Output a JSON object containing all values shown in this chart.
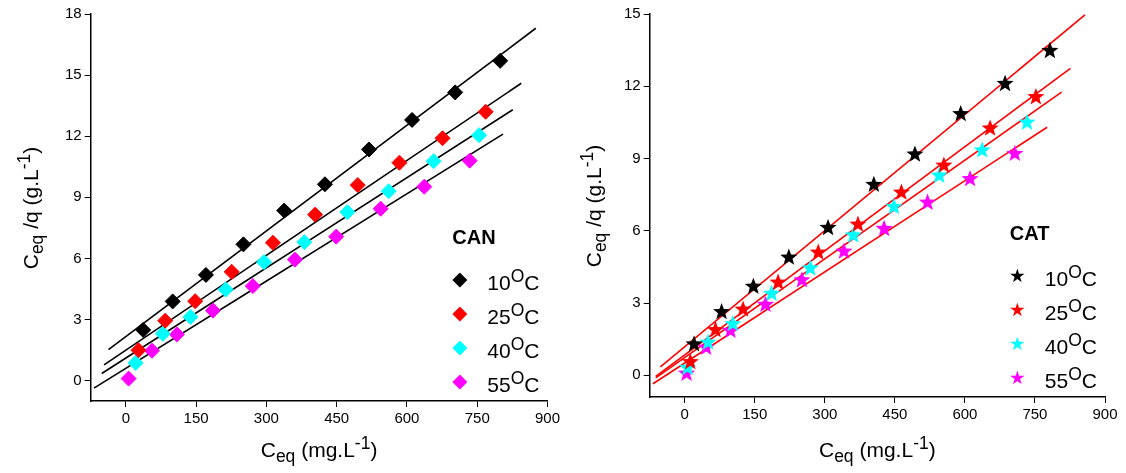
{
  "chart_data": [
    {
      "type": "scatter",
      "xlabel": "C$_{eq}$ (mg.L$^{-1}$)",
      "ylabel": "C$_{eq}$ /q (g.L$^{-1}$)",
      "legend_title": "CAN",
      "legend": "bottom right",
      "marker": "diamond",
      "xlim": [
        -75,
        900
      ],
      "xticks": [
        0,
        150,
        300,
        450,
        600,
        750,
        900
      ],
      "ylim": [
        -1,
        18
      ],
      "yticks": [
        0,
        3,
        6,
        9,
        12,
        15,
        18
      ],
      "series": [
        {
          "name": "10$^{O}$C",
          "color": "#000000",
          "x": [
            37,
            100,
            171,
            251,
            338,
            425,
            519,
            611,
            703,
            799
          ],
          "values": [
            2.49,
            3.89,
            5.19,
            6.69,
            8.35,
            9.64,
            11.35,
            12.8,
            14.15,
            15.7
          ]
        },
        {
          "name": "25$^{O}$C",
          "color": "#ff0000",
          "x": [
            27,
            84,
            148,
            226,
            314,
            404,
            495,
            584,
            676,
            768
          ],
          "values": [
            1.49,
            2.94,
            3.9,
            5.34,
            6.77,
            8.15,
            9.6,
            10.7,
            11.9,
            13.2
          ]
        },
        {
          "name": "40$^{O}$C",
          "color": "#00ffff",
          "x": [
            21,
            79,
            138,
            213,
            295,
            381,
            473,
            561,
            657,
            754
          ],
          "values": [
            0.87,
            2.3,
            3.13,
            4.47,
            5.82,
            6.8,
            8.27,
            9.3,
            10.77,
            12.05
          ]
        },
        {
          "name": "55$^{O}$C",
          "color": "#ff00ff",
          "x": [
            6,
            56,
            109,
            186,
            271,
            361,
            449,
            544,
            637,
            734
          ],
          "values": [
            0.1,
            1.47,
            2.27,
            3.44,
            4.64,
            5.94,
            7.07,
            8.44,
            9.52,
            10.8
          ]
        },
        {
          "type": "line",
          "marker": "none",
          "color": "#000000",
          "x": [
            -37,
            875
          ],
          "values": [
            1.52,
            17.3
          ]
        },
        {
          "type": "line",
          "marker": "none",
          "color": "#000000",
          "x": [
            -46.5,
            844
          ],
          "values": [
            0.77,
            14.6
          ]
        },
        {
          "type": "line",
          "marker": "none",
          "color": "#000000",
          "x": [
            -51.4,
            826
          ],
          "values": [
            0.35,
            13.3
          ]
        },
        {
          "type": "line",
          "marker": "none",
          "color": "#000000",
          "x": [
            -68,
            805
          ],
          "values": [
            -0.37,
            12.1
          ]
        }
      ]
    },
    {
      "type": "scatter",
      "xlabel": "C$_{eq}$ (mg.L$^{-1}$)",
      "ylabel": "C$_{eq}$ /q (g.L$^{-1}$)",
      "legend_title": "CAT",
      "legend": "bottom right",
      "marker": "star",
      "xlim": [
        -75,
        900
      ],
      "xticks": [
        0,
        150,
        300,
        450,
        600,
        750,
        900
      ],
      "ylim": [
        -0.9,
        15
      ],
      "yticks": [
        0,
        3,
        6,
        9,
        12,
        15
      ],
      "series": [
        {
          "name": "10$^{O}$C",
          "color": "#000000",
          "x": [
            20,
            79,
            147,
            223,
            307,
            405,
            493,
            591,
            686,
            782
          ],
          "values": [
            1.29,
            2.63,
            3.68,
            4.89,
            6.12,
            7.91,
            9.17,
            10.85,
            12.1,
            13.47
          ]
        },
        {
          "name": "25$^{O}$C",
          "color": "#ff0000",
          "x": [
            12,
            66,
            125,
            200,
            286,
            371,
            464,
            555,
            654,
            752
          ],
          "values": [
            0.55,
            1.88,
            2.73,
            3.85,
            5.1,
            6.26,
            7.59,
            8.71,
            10.25,
            11.55
          ]
        },
        {
          "name": "40$^{O}$C",
          "color": "#00ffff",
          "x": [
            6,
            50,
            103,
            186,
            269,
            361,
            448,
            545,
            637,
            733
          ],
          "values": [
            0.31,
            1.36,
            2.13,
            3.39,
            4.44,
            5.81,
            6.99,
            8.29,
            9.34,
            10.49
          ]
        },
        {
          "name": "55$^{O}$C",
          "color": "#ff00ff",
          "x": [
            4,
            46,
            98,
            173,
            251,
            341,
            427,
            520,
            611,
            707
          ],
          "values": [
            0.07,
            1.15,
            1.85,
            2.93,
            3.95,
            5.14,
            6.08,
            7.17,
            8.15,
            9.2
          ]
        },
        {
          "type": "line",
          "marker": "none",
          "color": "#ff0000",
          "x": [
            -52,
            857
          ],
          "values": [
            0.35,
            14.96
          ]
        },
        {
          "type": "line",
          "marker": "none",
          "color": "#ff0000",
          "x": [
            -62,
            826
          ],
          "values": [
            -0.04,
            12.74
          ]
        },
        {
          "type": "line",
          "marker": "none",
          "color": "#ff0000",
          "x": [
            -62,
            807
          ],
          "values": [
            -0.11,
            11.76
          ]
        },
        {
          "type": "line",
          "marker": "none",
          "color": "#ff0000",
          "x": [
            -68,
            776
          ],
          "values": [
            -0.35,
            10.3
          ]
        }
      ]
    }
  ]
}
